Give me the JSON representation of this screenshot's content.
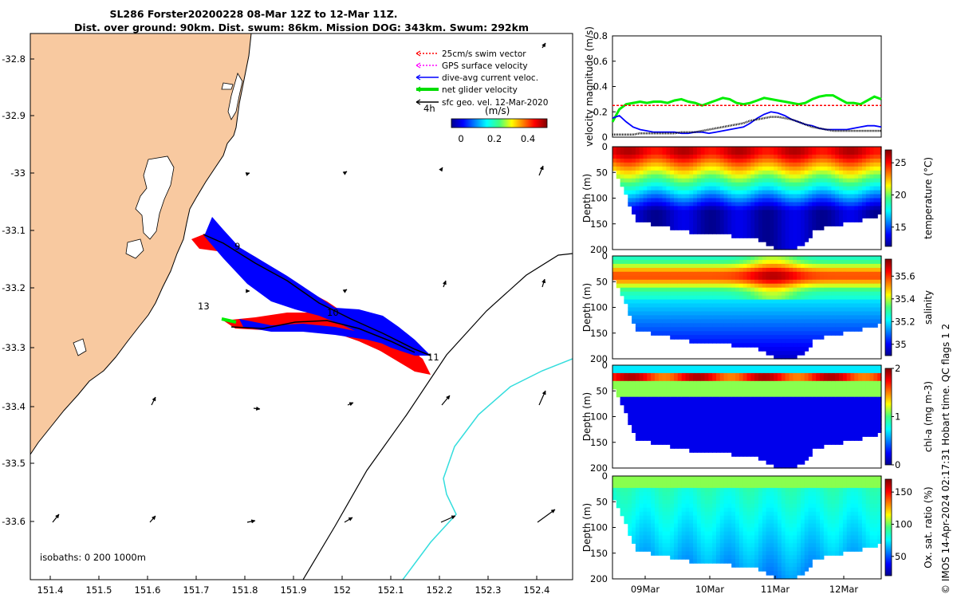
{
  "title": {
    "line1": "SL286 Forster20200228 08-Mar 12Z to 12-Mar 11Z.",
    "line2": "Dist. over ground: 90km. Dist. swum: 86km. Mission DOG: 343km. Swum: 292km"
  },
  "map": {
    "lon_ticks": [
      "151.4",
      "151.5",
      "151.6",
      "151.7",
      "151.8",
      "151.9",
      "152",
      "152.1",
      "152.2",
      "152.3",
      "152.4"
    ],
    "lat_ticks": [
      "-32.8",
      "-32.9",
      "-33",
      "-33.1",
      "-33.2",
      "-33.3",
      "-33.4",
      "-33.5",
      "-33.6"
    ],
    "legend": [
      {
        "label": "25cm/s swim vector",
        "color": "#ff0000",
        "style": "dotted"
      },
      {
        "label": "GPS surface velocity",
        "color": "#ff00ff",
        "style": "dotted"
      },
      {
        "label": "dive-avg current veloc.",
        "color": "#0000ff",
        "style": "solid"
      },
      {
        "label": "net glider velocity",
        "color": "#00dd00",
        "style": "thick"
      },
      {
        "label": "sfc geo. vel. 12-Mar-2020",
        "color": "#000000",
        "style": "solid"
      }
    ],
    "legend_small": "4h",
    "colorbar_unit": "(m/s)",
    "colorbar_ticks": [
      "0",
      "0.2",
      "0.4"
    ],
    "day_labels": [
      "9",
      "10",
      "11",
      "13"
    ],
    "isobaths_label": "isobaths: 0   200  1000m",
    "colors": {
      "land": "#f8c9a0",
      "track_red": "#ff0000",
      "track_blue": "#0000ff",
      "track_green": "#00ee00",
      "isobath_200": "#000000",
      "isobath_1000": "#33dddd"
    }
  },
  "chart_data": [
    {
      "type": "line",
      "ylabel": "velocity magnitude (m/s)",
      "ylim": [
        0,
        0.8
      ],
      "yticks": [
        "0",
        "0.2",
        "0.4",
        "0.6",
        "0.8"
      ],
      "series": [
        {
          "color": "#00ee00",
          "values": [
            0.12,
            0.22,
            0.26,
            0.27,
            0.28,
            0.27,
            0.28,
            0.28,
            0.27,
            0.29,
            0.3,
            0.28,
            0.27,
            0.25,
            0.27,
            0.29,
            0.31,
            0.3,
            0.27,
            0.26,
            0.27,
            0.29,
            0.31,
            0.3,
            0.29,
            0.28,
            0.27,
            0.26,
            0.27,
            0.3,
            0.32,
            0.33,
            0.33,
            0.3,
            0.27,
            0.27,
            0.26,
            0.29,
            0.32,
            0.3
          ]
        },
        {
          "color": "#ff0000",
          "values": [
            0.25,
            0.25,
            0.25,
            0.25,
            0.25,
            0.25,
            0.25,
            0.25,
            0.25,
            0.25,
            0.25,
            0.25,
            0.25,
            0.25,
            0.25,
            0.25,
            0.25,
            0.25,
            0.25,
            0.25,
            0.25,
            0.25,
            0.25,
            0.25,
            0.25,
            0.25,
            0.25,
            0.25,
            0.25,
            0.25,
            0.25,
            0.25,
            0.25,
            0.25,
            0.25,
            0.25,
            0.25,
            0.25,
            0.25,
            0.25
          ]
        },
        {
          "color": "#0000ff",
          "values": [
            0.15,
            0.17,
            0.12,
            0.08,
            0.06,
            0.05,
            0.04,
            0.04,
            0.04,
            0.04,
            0.03,
            0.03,
            0.04,
            0.04,
            0.03,
            0.04,
            0.05,
            0.06,
            0.07,
            0.08,
            0.11,
            0.15,
            0.18,
            0.2,
            0.19,
            0.17,
            0.14,
            0.12,
            0.1,
            0.09,
            0.07,
            0.06,
            0.06,
            0.06,
            0.06,
            0.07,
            0.08,
            0.09,
            0.09,
            0.08
          ]
        },
        {
          "color": "#000000",
          "values": [
            0.02,
            0.02,
            0.02,
            0.02,
            0.03,
            0.03,
            0.03,
            0.03,
            0.03,
            0.03,
            0.04,
            0.04,
            0.04,
            0.05,
            0.06,
            0.07,
            0.08,
            0.09,
            0.1,
            0.11,
            0.13,
            0.14,
            0.15,
            0.16,
            0.16,
            0.15,
            0.14,
            0.12,
            0.1,
            0.08,
            0.07,
            0.06,
            0.05,
            0.05,
            0.05,
            0.05,
            0.05,
            0.05,
            0.05,
            0.05
          ]
        }
      ]
    },
    {
      "type": "heatmap",
      "ylabel": "Depth (m)",
      "yticks": [
        "0",
        "50",
        "100",
        "150",
        "200"
      ],
      "colorbar_label": "temperature (°C)",
      "colorbar_ticks": [
        "15",
        "20",
        "25"
      ],
      "range": [
        12,
        27
      ]
    },
    {
      "type": "heatmap",
      "ylabel": "Depth (m)",
      "yticks": [
        "0",
        "50",
        "100",
        "150",
        "200"
      ],
      "colorbar_label": "salinity",
      "colorbar_ticks": [
        "35",
        "35.2",
        "35.4",
        "35.6"
      ],
      "range": [
        34.9,
        35.75
      ]
    },
    {
      "type": "heatmap",
      "ylabel": "Depth (m)",
      "yticks": [
        "0",
        "50",
        "100",
        "150",
        "200"
      ],
      "colorbar_label": "chl-a (mg m-3)",
      "colorbar_ticks": [
        "0",
        "1",
        "2"
      ],
      "range": [
        0,
        2
      ]
    },
    {
      "type": "heatmap",
      "ylabel": "Depth (m)",
      "yticks": [
        "0",
        "50",
        "100",
        "150",
        "200"
      ],
      "colorbar_label": "Ox. sat. ratio (%)",
      "colorbar_ticks": [
        "50",
        "100",
        "150"
      ],
      "range": [
        20,
        170
      ]
    }
  ],
  "time_ticks": [
    "09Mar",
    "10Mar",
    "11Mar",
    "12Mar"
  ],
  "side_text": {
    "qc": "salinity",
    "credit": "© IMOS 14-Apr-2024 02:17:31 Hobart time. QC flags 1  2"
  }
}
